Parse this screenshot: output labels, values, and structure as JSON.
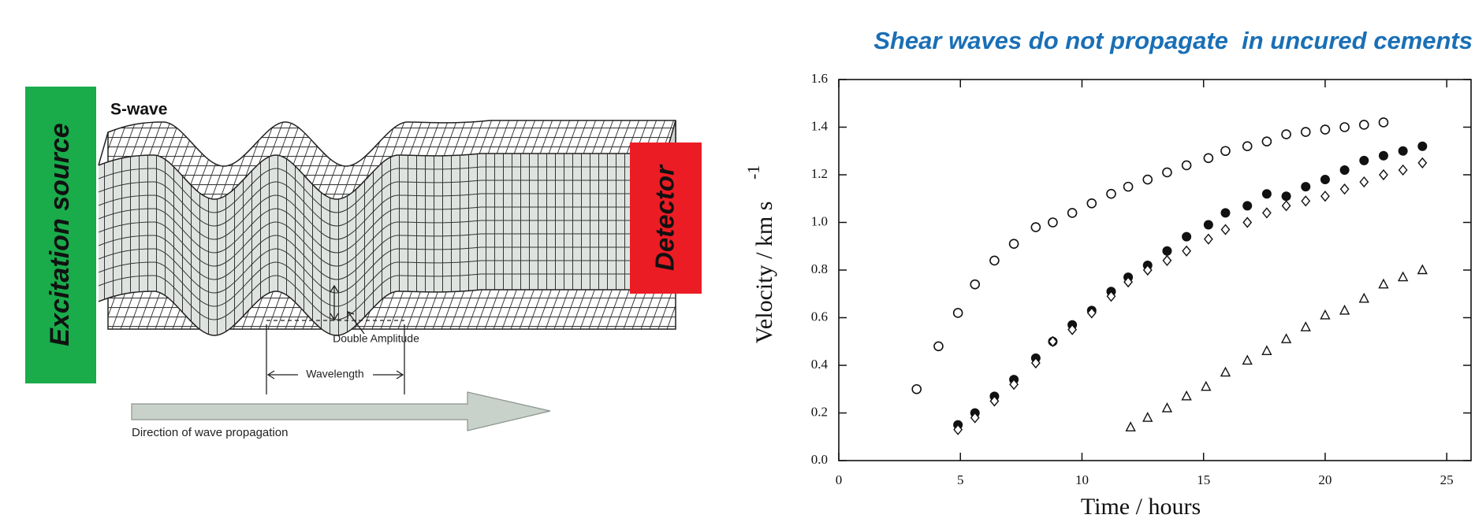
{
  "slide_title": "Shear waves do not propagate  in uncured cements",
  "diagram": {
    "source_label": "Excitation source",
    "wave_label": "S-wave",
    "detector_label": "Detector",
    "amplitude_label": "Double Amplitude",
    "wavelength_label": "Wavelength",
    "direction_label": "Direction of wave propagation"
  },
  "chart_data": {
    "type": "scatter",
    "xlabel": "Time / hours",
    "ylabel": "Velocity / km s",
    "ylabel_superscript": "-1",
    "xlim": [
      0,
      26
    ],
    "ylim": [
      0,
      1.6
    ],
    "xticks": [
      0,
      5,
      10,
      15,
      20,
      25
    ],
    "yticks": [
      {
        "value": 0,
        "label": "0.0"
      },
      0.2,
      0.4,
      0.6,
      0.8,
      {
        "value": 1,
        "label": "1.0"
      },
      1.2,
      1.4,
      1.6
    ],
    "series": [
      {
        "marker": "circle-open",
        "color": "#111111",
        "x": [
          3.2,
          4.1,
          4.9,
          5.6,
          6.4,
          7.2,
          8.1,
          8.8,
          9.6,
          10.4,
          11.2,
          11.9,
          12.7,
          13.5,
          14.3,
          15.2,
          15.9,
          16.8,
          17.6,
          18.4,
          19.2,
          20.0,
          20.8,
          21.6,
          22.4
        ],
        "values": [
          0.3,
          0.48,
          0.62,
          0.74,
          0.84,
          0.91,
          0.98,
          1.0,
          1.04,
          1.08,
          1.12,
          1.15,
          1.18,
          1.21,
          1.24,
          1.27,
          1.3,
          1.32,
          1.34,
          1.37,
          1.38,
          1.39,
          1.4,
          1.41,
          1.42
        ]
      },
      {
        "marker": "circle-filled",
        "color": "#111111",
        "x": [
          4.9,
          5.6,
          6.4,
          7.2,
          8.1,
          8.8,
          9.6,
          10.4,
          11.2,
          11.9,
          12.7,
          13.5,
          14.3,
          15.2,
          15.9,
          16.8,
          17.6,
          18.4,
          19.2,
          20.0,
          20.8,
          21.6,
          22.4,
          23.2,
          24.0
        ],
        "values": [
          0.15,
          0.2,
          0.27,
          0.34,
          0.43,
          0.5,
          0.57,
          0.63,
          0.71,
          0.77,
          0.82,
          0.88,
          0.94,
          0.99,
          1.04,
          1.07,
          1.12,
          1.11,
          1.15,
          1.18,
          1.22,
          1.26,
          1.28,
          1.3,
          1.32
        ]
      },
      {
        "marker": "diamond-open",
        "color": "#111111",
        "x": [
          4.9,
          5.6,
          6.4,
          7.2,
          8.1,
          8.8,
          9.6,
          10.4,
          11.2,
          11.9,
          12.7,
          13.5,
          14.3,
          15.2,
          15.9,
          16.8,
          17.6,
          18.4,
          19.2,
          20.0,
          20.8,
          21.6,
          22.4,
          23.2,
          24.0
        ],
        "values": [
          0.13,
          0.18,
          0.25,
          0.32,
          0.41,
          0.5,
          0.55,
          0.62,
          0.69,
          0.75,
          0.8,
          0.84,
          0.88,
          0.93,
          0.97,
          1.0,
          1.04,
          1.07,
          1.09,
          1.11,
          1.14,
          1.17,
          1.2,
          1.22,
          1.25
        ]
      },
      {
        "marker": "triangle-open",
        "color": "#111111",
        "x": [
          12.0,
          12.7,
          13.5,
          14.3,
          15.1,
          15.9,
          16.8,
          17.6,
          18.4,
          19.2,
          20.0,
          20.8,
          21.6,
          22.4,
          23.2,
          24.0
        ],
        "values": [
          0.14,
          0.18,
          0.22,
          0.27,
          0.31,
          0.37,
          0.42,
          0.46,
          0.51,
          0.56,
          0.61,
          0.63,
          0.68,
          0.74,
          0.77,
          0.8
        ]
      }
    ]
  }
}
